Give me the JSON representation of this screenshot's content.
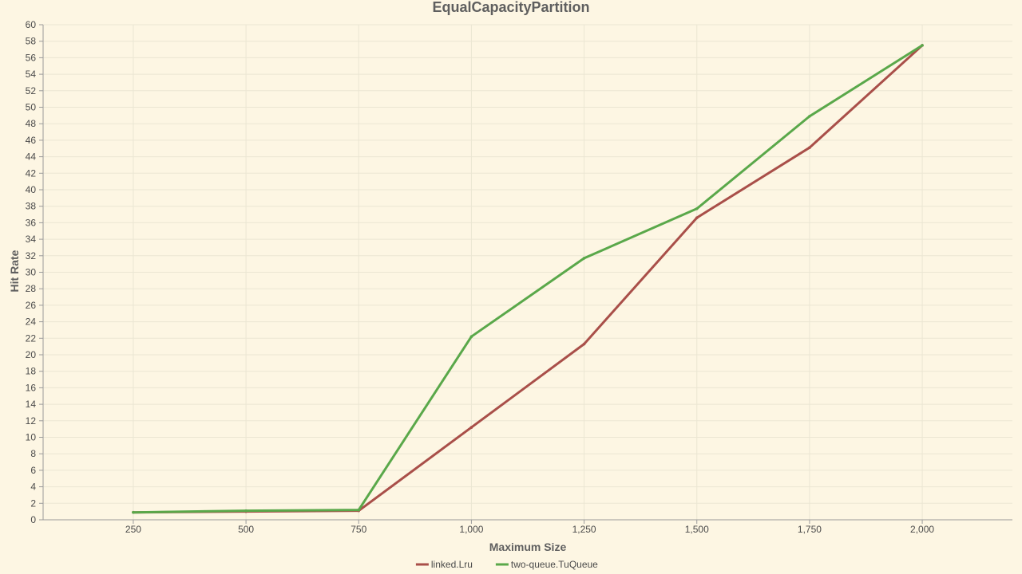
{
  "chart_data": {
    "type": "line",
    "title": "EqualCapacityPartition",
    "xlabel": "Maximum Size",
    "ylabel": "Hit Rate",
    "x": [
      250,
      500,
      750,
      1000,
      1250,
      1500,
      1750,
      2000
    ],
    "x_tick_labels": [
      "250",
      "500",
      "750",
      "1,000",
      "1,250",
      "1,500",
      "1,750",
      "2,000"
    ],
    "xlim": [
      50,
      2200
    ],
    "ylim": [
      0,
      60
    ],
    "y_ticks": [
      0,
      2,
      4,
      6,
      8,
      10,
      12,
      14,
      16,
      18,
      20,
      22,
      24,
      26,
      28,
      30,
      32,
      34,
      36,
      38,
      40,
      42,
      44,
      46,
      48,
      50,
      52,
      54,
      56,
      58,
      60
    ],
    "grid": true,
    "legend_position": "bottom",
    "series": [
      {
        "name": "linked.Lru",
        "color": "#a94f49",
        "values": [
          0.9,
          1.0,
          1.1,
          11.2,
          21.3,
          36.6,
          45.1,
          57.5
        ]
      },
      {
        "name": "two-queue.TuQueue",
        "color": "#5aa84a",
        "values": [
          0.9,
          1.1,
          1.2,
          22.2,
          31.7,
          37.7,
          48.9,
          57.5
        ]
      }
    ]
  }
}
